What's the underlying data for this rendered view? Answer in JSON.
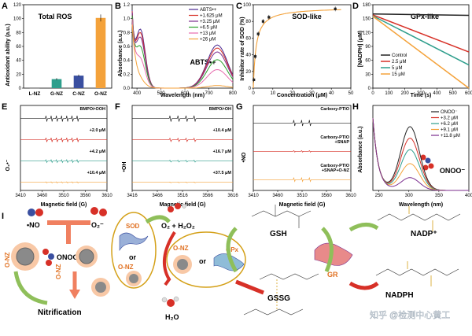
{
  "figure": {
    "panel_letters": [
      "A",
      "B",
      "C",
      "D",
      "E",
      "F",
      "G",
      "H",
      "I"
    ],
    "colors": {
      "orange": "#f4a23a",
      "teal": "#2e9e8c",
      "blue": "#3a4fa0",
      "gray": "#555555",
      "red": "#d73027",
      "purple": "#7b2d8e",
      "green": "#2ca02c",
      "brown": "#b5651d",
      "black": "#000000"
    }
  },
  "chart_data": [
    {
      "id": "A",
      "type": "bar",
      "title": "Total ROS",
      "categories": [
        "L-NZ",
        "G-NZ",
        "C-NZ",
        "O-NZ"
      ],
      "values": [
        0,
        13,
        18,
        101
      ],
      "errors": [
        0,
        1.5,
        1.5,
        5
      ],
      "colors": [
        "#555555",
        "#2e9e8c",
        "#3a4fa0",
        "#f4a23a"
      ],
      "ylabel": "Antioxidant ability (a.u.)",
      "xlabel": "",
      "ylim": [
        0,
        120
      ],
      "yticks": [
        "0",
        "20",
        "40",
        "60",
        "80",
        "100",
        "120"
      ]
    },
    {
      "id": "B",
      "type": "line",
      "title": "ABTS•+",
      "xlabel": "Wavelength (nm)",
      "ylabel": "Absorbance (a.u.)",
      "xlim": [
        380,
        800
      ],
      "ylim": [
        0,
        1.2
      ],
      "xticks": [
        "400",
        "500",
        "600",
        "700",
        "800"
      ],
      "yticks": [
        "0.0",
        "0.2",
        "0.4",
        "0.6",
        "0.8",
        "1.0",
        "1.2"
      ],
      "legend": [
        "ABTS•+",
        "+1.625 μM",
        "+3.25 μM",
        "+6.5 μM",
        "+13 μM",
        "+26 μM"
      ],
      "series": [
        {
          "name": "ABTS•+",
          "color": "#4b2991",
          "scale": 1.0
        },
        {
          "name": "+1.625 μM",
          "color": "#d73027",
          "scale": 0.93
        },
        {
          "name": "+3.25 μM",
          "color": "#7b2d8e",
          "scale": 0.84
        },
        {
          "name": "+6.5 μM",
          "color": "#2ca02c",
          "scale": 0.66
        },
        {
          "name": "+13 μM",
          "color": "#e76bad",
          "scale": 0.43
        },
        {
          "name": "+26 μM",
          "color": "#f4a23a",
          "scale": 0.06
        }
      ]
    },
    {
      "id": "C",
      "type": "scatter",
      "title": "SOD-like",
      "xlabel": "Concentration (μM)",
      "ylabel": "Inhibitor rate of SOD (%)",
      "xlim": [
        0,
        50
      ],
      "ylim": [
        0,
        100
      ],
      "xticks": [
        "0",
        "10",
        "20",
        "30",
        "40",
        "50"
      ],
      "yticks": [
        "0",
        "20",
        "40",
        "60",
        "80",
        "100"
      ],
      "x": [
        0.3,
        1,
        2.5,
        5,
        8,
        42
      ],
      "y": [
        10,
        38,
        65,
        80,
        85,
        95
      ]
    },
    {
      "id": "D",
      "type": "line",
      "title": "GPx-like",
      "xlabel": "Time (s)",
      "ylabel": "[NADPH] (μM)",
      "xlim": [
        0,
        600
      ],
      "ylim": [
        0,
        180
      ],
      "xticks": [
        "0",
        "100",
        "200",
        "300",
        "400",
        "500",
        "600"
      ],
      "yticks": [
        "0",
        "30",
        "60",
        "90",
        "120",
        "150",
        "180"
      ],
      "legend": [
        "Control",
        "2.5 μM",
        "5 μM",
        "15 μM"
      ],
      "series": [
        {
          "name": "Control",
          "color": "#222222",
          "y0": 160,
          "y1": 157
        },
        {
          "name": "2.5 μM",
          "color": "#d73027",
          "y0": 158,
          "y1": 78
        },
        {
          "name": "5 μM",
          "color": "#2e9e8c",
          "y0": 156,
          "y1": 50
        },
        {
          "name": "15 μM",
          "color": "#f4a23a",
          "y0": 155,
          "y1": 0
        }
      ]
    },
    {
      "id": "H",
      "type": "line",
      "title": "ONOO⁻",
      "xlabel": "Wavelength (nm)",
      "ylabel": "Absorbance (a.u.)",
      "xlim": [
        240,
        400
      ],
      "ylim": [
        0,
        1.0
      ],
      "xticks": [
        "250",
        "300",
        "350",
        "400"
      ],
      "yticks": [],
      "legend": [
        "ONOO⁻",
        "+3.2 μM",
        "+6.2 μM",
        "+9.1 μM",
        "+11.8 μM"
      ],
      "series": [
        {
          "name": "ONOO⁻",
          "color": "#222222",
          "scale": 1.0
        },
        {
          "name": "+3.2 μM",
          "color": "#d73027",
          "scale": 0.82
        },
        {
          "name": "+6.2 μM",
          "color": "#2e9e8c",
          "scale": 0.64
        },
        {
          "name": "+9.1 μM",
          "color": "#f4a23a",
          "scale": 0.42
        },
        {
          "name": "+11.8 μM",
          "color": "#7b2d8e",
          "scale": 0.2
        }
      ]
    }
  ],
  "epr": {
    "E": {
      "xlabel": "Magnetic field (G)",
      "xticks": [
        "3410",
        "3460",
        "3510",
        "3560",
        "3610"
      ],
      "side": "O₂•⁻",
      "rows": [
        {
          "label": "BMPO/•OOH",
          "color": "#222222",
          "amp": 1.0
        },
        {
          "label": "+2.0 μM",
          "color": "#d73027",
          "amp": 0.7
        },
        {
          "label": "+4.2 μM",
          "color": "#2e9e8c",
          "amp": 0.45
        },
        {
          "label": "+10.4 μM",
          "color": "#f4a23a",
          "amp": 0.2
        }
      ]
    },
    "F": {
      "xlabel": "Magnetic field (G)",
      "xticks": [
        "3416",
        "3466",
        "3516",
        "3566",
        "3616"
      ],
      "side": "•OH",
      "rows": [
        {
          "label": "BMPO/•OH",
          "color": "#222222",
          "amp": 1.0
        },
        {
          "label": "+10.4 μM",
          "color": "#d73027",
          "amp": 0.55
        },
        {
          "label": "+16.7 μM",
          "color": "#2e9e8c",
          "amp": 0.3
        },
        {
          "label": "+37.5 μM",
          "color": "#f4a23a",
          "amp": 0.12
        }
      ]
    },
    "G": {
      "xlabel": "Magnetic field (G)",
      "xticks": [
        "3410",
        "3460",
        "3510",
        "3560",
        "3610"
      ],
      "side": "•NO",
      "rows": [
        {
          "label": "Carboxy-PTIO",
          "color": "#222222",
          "amp": 1.0
        },
        {
          "label": "Carboxy-PTIO\n+SNAP",
          "color": "#d73027",
          "amp": 0.25
        },
        {
          "label": "Carboxy-PTIO\n+SNAP+O-NZ",
          "color": "#f4a23a",
          "amp": 0.6
        }
      ]
    }
  },
  "scheme": {
    "no": "•NO",
    "o2": "O₂⁻",
    "onoo": "ONOO⁻",
    "sod": "SOD",
    "or1": "or",
    "onz": "O-NZ",
    "o2h2o2": "O₂ + H₂O₂",
    "h2o": "H₂O",
    "gpx": "GPx",
    "gsh": "GSH",
    "gssg": "GSSG",
    "gr": "GR",
    "nadp": "NADP⁺",
    "nadph": "NADPH",
    "nitrification": "Nitrification",
    "watermark": "知乎 @检测中心黄工"
  }
}
